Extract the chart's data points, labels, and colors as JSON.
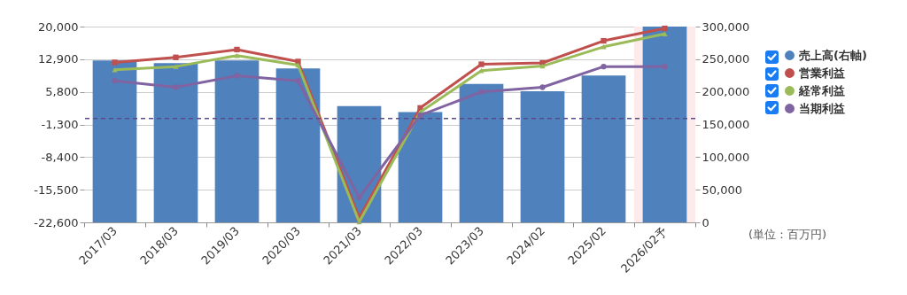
{
  "chart_data": {
    "type": "line",
    "categories": [
      "2017/03",
      "2018/03",
      "2019/03",
      "2020/03",
      "2021/03",
      "2022/03",
      "2023/03",
      "2024/02",
      "2025/02",
      "2026/02予"
    ],
    "series": [
      {
        "name": "売上高(右軸)",
        "type": "bar",
        "axis": "y2",
        "color": "#4f81bd",
        "values": [
          248000,
          244000,
          248000,
          236000,
          178000,
          169000,
          212000,
          201000,
          225000,
          300000
        ]
      },
      {
        "name": "営業利益",
        "marker": "square",
        "color": "#c0504d",
        "values": [
          12200,
          13300,
          15000,
          12400,
          -21600,
          2300,
          11800,
          12100,
          16900,
          19600
        ]
      },
      {
        "name": "経常利益",
        "marker": "triangle",
        "color": "#9bbb59",
        "values": [
          10600,
          11300,
          13700,
          11600,
          -22500,
          1400,
          10400,
          11400,
          15600,
          18400
        ]
      },
      {
        "name": "当期利益",
        "marker": "circle",
        "color": "#8064a2",
        "values": [
          8200,
          6800,
          9300,
          8200,
          -17200,
          700,
          5800,
          6800,
          11300,
          11300
        ]
      }
    ],
    "ylim": [
      -22600,
      20000
    ],
    "yticks": [
      {
        "value": -22600,
        "label": "-22,600"
      },
      {
        "value": -15500,
        "label": "-15,500"
      },
      {
        "value": -8400,
        "label": "-8,400"
      },
      {
        "value": -1300,
        "label": "-1,300"
      },
      {
        "value": 5800,
        "label": "5,800"
      },
      {
        "value": 12900,
        "label": "12,900"
      },
      {
        "value": 20000,
        "label": "20,000"
      }
    ],
    "y2lim": [
      0,
      300000
    ],
    "y2ticks": [
      0,
      {
        "value": 50000,
        "label": "50,000"
      },
      {
        "value": 100000,
        "label": "100,000"
      },
      {
        "value": 150000,
        "label": "150,000"
      },
      {
        "value": 200000,
        "label": "200,000"
      },
      {
        "value": 250000,
        "label": "250,000"
      },
      {
        "value": 300000,
        "label": "300,000"
      }
    ],
    "ref_lines": [
      {
        "axis": "y",
        "value": 0,
        "color": "#5b4a8a",
        "line_style": "dashed"
      }
    ],
    "bands": [
      {
        "axis": "x",
        "from": "2026/02予",
        "to": "2026/02予",
        "color": "#fdeaea"
      }
    ],
    "grid": "y",
    "legend": "right",
    "line_style": "solid",
    "annotations": [
      "(単位：百万円)"
    ]
  }
}
